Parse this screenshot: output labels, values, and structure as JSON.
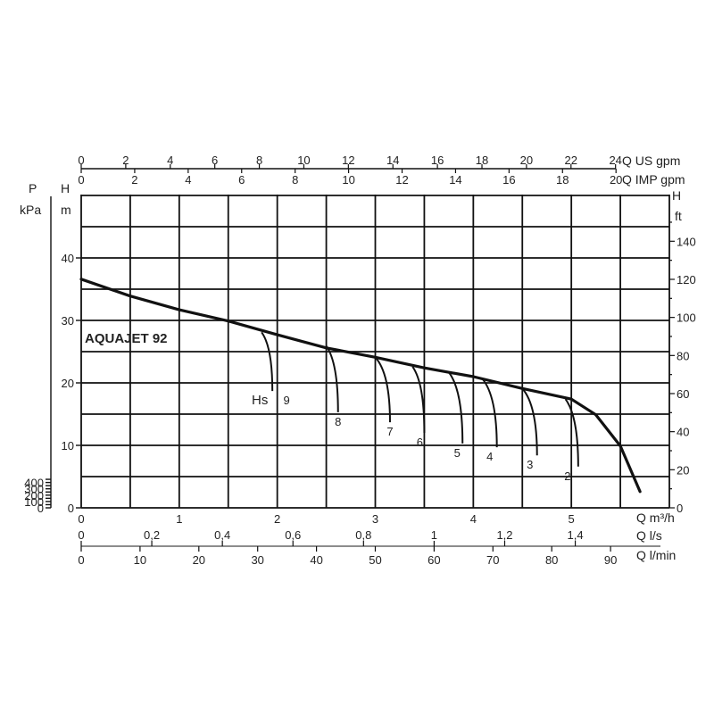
{
  "chart_data": {
    "type": "line",
    "title": "AQUAJET 92",
    "grid": true,
    "x_primary": {
      "label": "Q m³/h",
      "range": [
        0,
        6
      ],
      "ticks": [
        0,
        1,
        2,
        3,
        4,
        5
      ]
    },
    "x_us_gpm": {
      "label": "Q US gpm",
      "ticks": [
        0,
        2,
        4,
        6,
        8,
        10,
        12,
        14,
        16,
        18,
        20,
        22,
        24
      ]
    },
    "x_imp_gpm": {
      "label": "Q IMP gpm",
      "ticks": [
        0,
        2,
        4,
        6,
        8,
        10,
        12,
        14,
        16,
        18,
        20
      ]
    },
    "x_ls": {
      "label": "Q l/s",
      "ticks": [
        "0",
        "0,2",
        "0,4",
        "0,6",
        "0,8",
        "1",
        "1,2",
        "1,4"
      ]
    },
    "x_lmin": {
      "label": "Q l/min",
      "ticks": [
        0,
        10,
        20,
        30,
        40,
        50,
        60,
        70,
        80,
        90
      ]
    },
    "y_primary": {
      "label_top": "H",
      "label_unit": "m",
      "range": [
        0,
        50
      ],
      "ticks": [
        0,
        10,
        20,
        30,
        40
      ]
    },
    "y_kpa": {
      "label_top": "P",
      "label_unit": "kPa",
      "ticks": [
        0,
        100,
        200,
        300,
        400
      ]
    },
    "y_ft": {
      "label_top": "H",
      "label_unit": "ft",
      "ticks": [
        0,
        20,
        40,
        60,
        80,
        100,
        120,
        140
      ]
    },
    "main_curve": {
      "x": [
        0,
        0.5,
        1,
        1.5,
        2,
        2.5,
        3,
        3.5,
        4,
        4.5,
        5,
        5.25,
        5.5,
        5.7
      ],
      "y": [
        36.6,
        33.9,
        31.7,
        29.9,
        27.7,
        25.6,
        24.1,
        22.4,
        21,
        19.1,
        17.4,
        14.9,
        9.9,
        2.6
      ]
    },
    "suction_label": "Hs",
    "suction_curves": [
      {
        "label": "9",
        "start": [
          1.84,
          28.1
        ],
        "end": [
          1.95,
          18.7
        ]
      },
      {
        "label": "8",
        "start": [
          2.5,
          25.9
        ],
        "end": [
          2.62,
          15.3
        ]
      },
      {
        "label": "7",
        "start": [
          3.0,
          24.1
        ],
        "end": [
          3.15,
          13.7
        ]
      },
      {
        "label": "6",
        "start": [
          3.38,
          22.6
        ],
        "end": [
          3.5,
          12.0
        ]
      },
      {
        "label": "5",
        "start": [
          3.75,
          21.7
        ],
        "end": [
          3.89,
          10.3
        ]
      },
      {
        "label": "4",
        "start": [
          4.09,
          20.7
        ],
        "end": [
          4.24,
          9.7
        ]
      },
      {
        "label": "3",
        "start": [
          4.5,
          19.1
        ],
        "end": [
          4.65,
          8.4
        ]
      },
      {
        "label": "2",
        "start": [
          4.94,
          17.4
        ],
        "end": [
          5.07,
          6.6
        ]
      }
    ]
  }
}
